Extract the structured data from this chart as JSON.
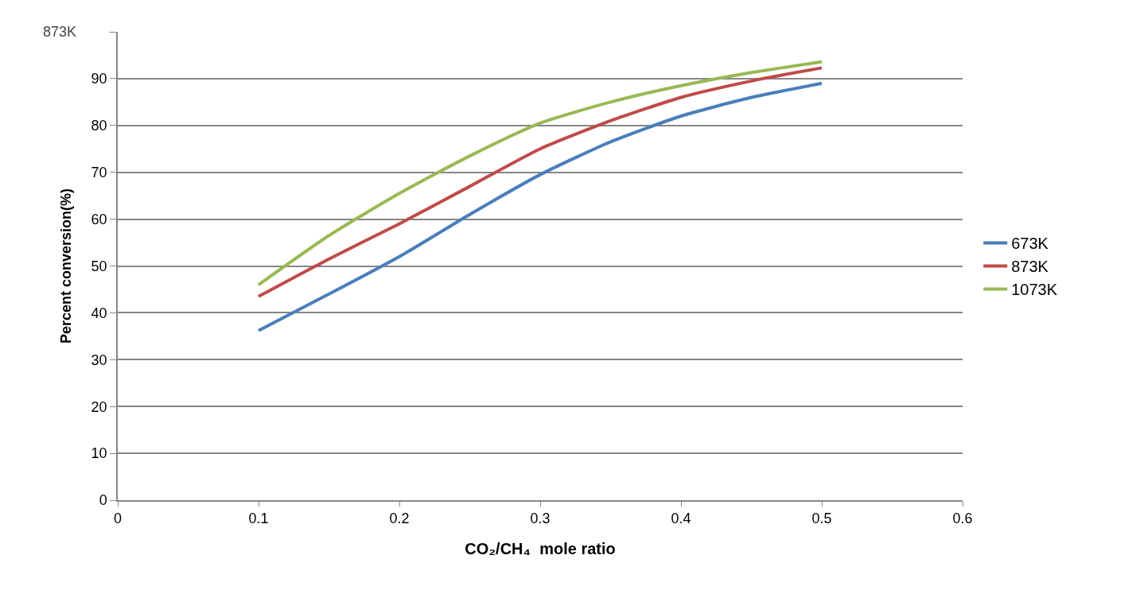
{
  "chart_data": {
    "type": "line",
    "xlabel": "CO₂/CH₄  mole ratio",
    "ylabel": "Percent conversion(%)",
    "x": [
      0.1,
      0.15,
      0.2,
      0.25,
      0.3,
      0.35,
      0.4,
      0.45,
      0.5
    ],
    "series": [
      {
        "name": "673K",
        "color": "#4a7ebb",
        "values": [
          36.2,
          44,
          52,
          61,
          69.5,
          76.5,
          82,
          86,
          89
        ]
      },
      {
        "name": "873K",
        "color": "#be4b48",
        "values": [
          43.5,
          51.5,
          59,
          67,
          75,
          81,
          86,
          89.5,
          92.3
        ]
      },
      {
        "name": "1073K",
        "color": "#98b954",
        "values": [
          46,
          56.5,
          65.5,
          73.5,
          80.5,
          85,
          88.5,
          91.3,
          93.6
        ]
      }
    ],
    "xlim": [
      0,
      0.6
    ],
    "xticks": [
      0,
      0.1,
      0.2,
      0.3,
      0.4,
      0.5,
      0.6
    ],
    "ylim": [
      0,
      100
    ],
    "yticks": [
      0,
      10,
      20,
      30,
      40,
      50,
      60,
      70,
      80,
      90,
      {
        "value": 100,
        "label": null
      }
    ],
    "annotations": [
      "873K"
    ],
    "grid": "y",
    "legend": "right",
    "marker": "none",
    "line_style": "solid"
  }
}
